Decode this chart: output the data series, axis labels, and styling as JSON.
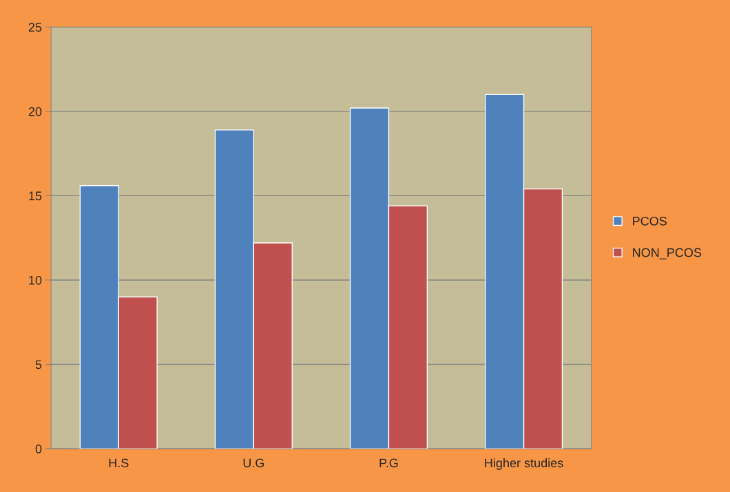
{
  "chart_data": {
    "type": "bar",
    "categories": [
      "H.S",
      "U.G",
      "P.G",
      "Higher studies"
    ],
    "series": [
      {
        "name": "PCOS",
        "color": "#4f81bd",
        "values": [
          15.6,
          18.9,
          20.2,
          21.0
        ]
      },
      {
        "name": "NON_PCOS",
        "color": "#c0504d",
        "values": [
          9.0,
          12.2,
          14.4,
          15.4
        ]
      }
    ],
    "ylim": [
      0,
      25
    ],
    "yticks": [
      0,
      5,
      10,
      15,
      20,
      25
    ],
    "grid": "y",
    "legend": "right"
  }
}
